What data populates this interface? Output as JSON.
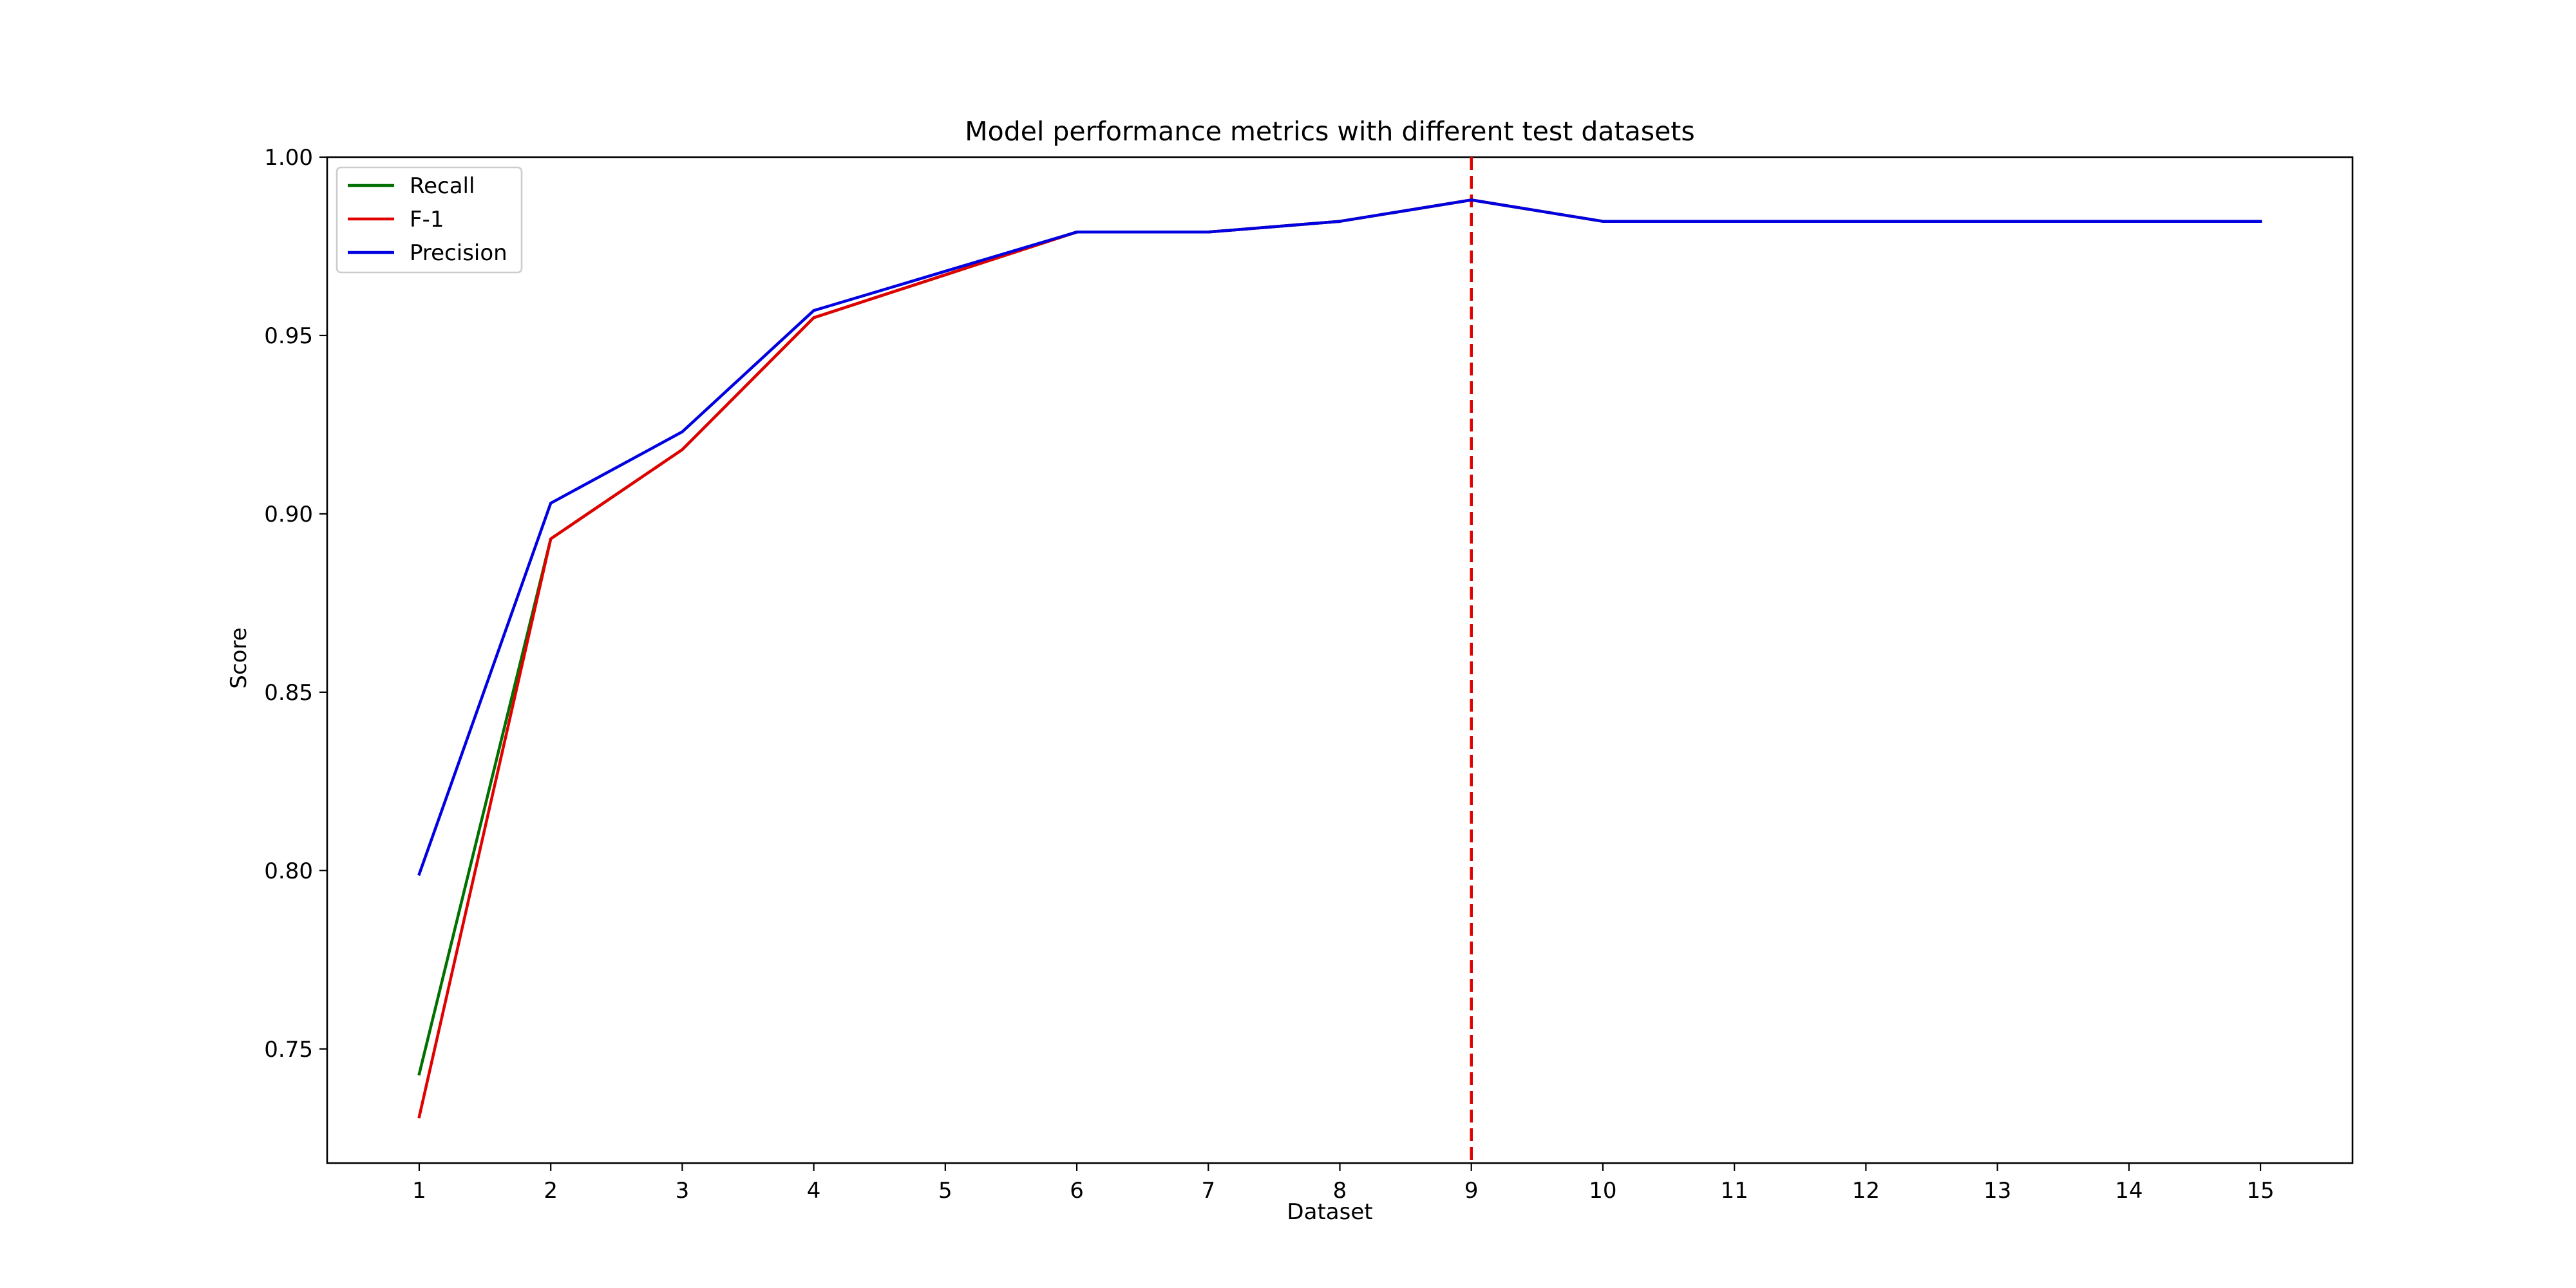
{
  "chart_data": {
    "type": "line",
    "title": "Model performance metrics with different test datasets",
    "xlabel": "Dataset",
    "ylabel": "Score",
    "x": [
      1,
      2,
      3,
      4,
      5,
      6,
      7,
      8,
      9,
      10,
      11,
      12,
      13,
      14,
      15
    ],
    "xlim": [
      0.3,
      15.7
    ],
    "ylim": [
      0.718,
      1.0
    ],
    "xticks": [
      "1",
      "2",
      "3",
      "4",
      "5",
      "6",
      "7",
      "8",
      "9",
      "10",
      "11",
      "12",
      "13",
      "14",
      "15"
    ],
    "yticks": [
      0.75,
      0.8,
      0.85,
      0.9,
      0.95,
      1.0
    ],
    "ytick_labels": [
      "0.75",
      "0.80",
      "0.85",
      "0.90",
      "0.95",
      "1.00"
    ],
    "grid": false,
    "legend": {
      "position": "top-left"
    },
    "series": [
      {
        "name": "Recall",
        "color": "#007000",
        "values": [
          0.743,
          0.893,
          0.918,
          0.955,
          0.967,
          0.979,
          0.979,
          0.982,
          0.988,
          0.982,
          0.982,
          0.982,
          0.982,
          0.982,
          0.982
        ]
      },
      {
        "name": "F-1",
        "color": "#e00000",
        "values": [
          0.731,
          0.893,
          0.918,
          0.955,
          0.967,
          0.979,
          0.979,
          0.982,
          0.988,
          0.982,
          0.982,
          0.982,
          0.982,
          0.982,
          0.982
        ]
      },
      {
        "name": "Precision",
        "color": "#0000e0",
        "values": [
          0.799,
          0.903,
          0.923,
          0.957,
          0.968,
          0.979,
          0.979,
          0.982,
          0.988,
          0.982,
          0.982,
          0.982,
          0.982,
          0.982,
          0.982
        ]
      }
    ],
    "annotations": [
      {
        "type": "vline",
        "x": 9,
        "color": "#e00000",
        "style": "dashed"
      }
    ]
  }
}
